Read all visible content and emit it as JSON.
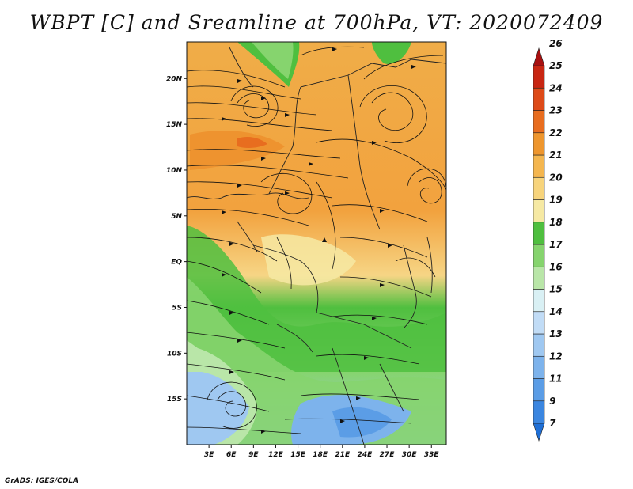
{
  "title": "WBPT [C] and Sreamline at 700hPa, VT: 2020072409",
  "footer": "GrADS: IGES/COLA",
  "map": {
    "lat_labels": [
      "20N",
      "15N",
      "10N",
      "5N",
      "EQ",
      "5S",
      "10S",
      "15S"
    ],
    "lon_labels": [
      "3E",
      "6E",
      "9E",
      "12E",
      "15E",
      "18E",
      "21E",
      "24E",
      "27E",
      "30E",
      "33E"
    ],
    "lat_range": [
      -20,
      24
    ],
    "lon_range": [
      0,
      35
    ]
  },
  "colorbar": {
    "labels": [
      "7",
      "9",
      "11",
      "12",
      "13",
      "14",
      "15",
      "16",
      "17",
      "18",
      "19",
      "20",
      "21",
      "22",
      "23",
      "24",
      "25",
      "26"
    ],
    "colors": [
      "#1f6fd6",
      "#3b86e0",
      "#5b9de6",
      "#7db3ec",
      "#9fc8f1",
      "#c1dcf6",
      "#d9f0f4",
      "#b9e6a8",
      "#86d46e",
      "#4fbf3f",
      "#f6e9a3",
      "#f7d47c",
      "#f4b64f",
      "#ee962e",
      "#e86d1f",
      "#dd4a18",
      "#c82612",
      "#a81010"
    ]
  }
}
